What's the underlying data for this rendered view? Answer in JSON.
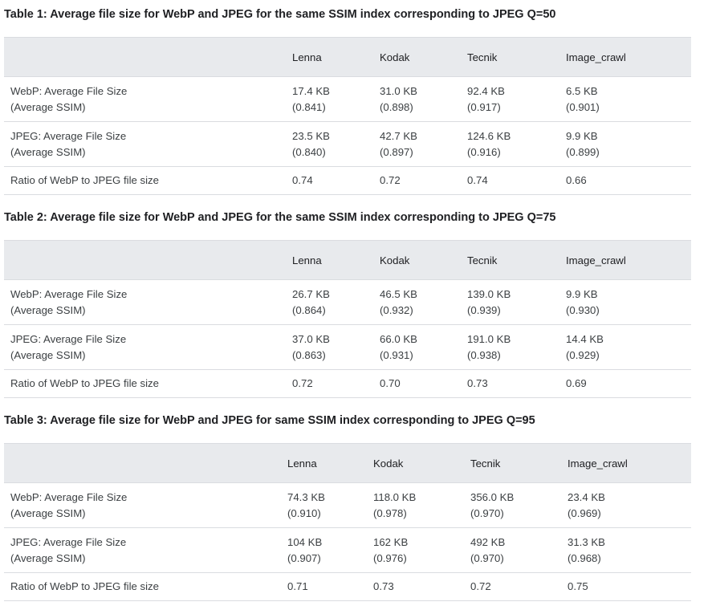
{
  "tables": [
    {
      "caption": "Table 1: Average file size for WebP and JPEG for the same SSIM index corresponding to JPEG Q=50",
      "columns": [
        "",
        "Lenna",
        "Kodak",
        "Tecnik",
        "Image_crawl"
      ],
      "rows": [
        {
          "label": [
            "WebP: Average File Size",
            "(Average SSIM)"
          ],
          "cells": [
            [
              "17.4 KB",
              "(0.841)"
            ],
            [
              "31.0 KB",
              "(0.898)"
            ],
            [
              "92.4 KB",
              "(0.917)"
            ],
            [
              "6.5 KB",
              "(0.901)"
            ]
          ]
        },
        {
          "label": [
            "JPEG: Average File Size",
            "(Average SSIM)"
          ],
          "cells": [
            [
              "23.5 KB",
              "(0.840)"
            ],
            [
              "42.7 KB",
              "(0.897)"
            ],
            [
              "124.6 KB",
              "(0.916)"
            ],
            [
              "9.9 KB",
              "(0.899)"
            ]
          ]
        },
        {
          "label": [
            "Ratio of WebP to JPEG file size"
          ],
          "cells": [
            [
              "0.74"
            ],
            [
              "0.72"
            ],
            [
              "0.74"
            ],
            [
              "0.66"
            ]
          ]
        }
      ]
    },
    {
      "caption": "Table 2: Average file size for WebP and JPEG for the same SSIM index corresponding to JPEG Q=75",
      "columns": [
        "",
        "Lenna",
        "Kodak",
        "Tecnik",
        "Image_crawl"
      ],
      "rows": [
        {
          "label": [
            "WebP: Average File Size",
            "(Average SSIM)"
          ],
          "cells": [
            [
              "26.7 KB",
              "(0.864)"
            ],
            [
              "46.5 KB",
              "(0.932)"
            ],
            [
              "139.0 KB",
              "(0.939)"
            ],
            [
              "9.9 KB",
              "(0.930)"
            ]
          ]
        },
        {
          "label": [
            "JPEG: Average File Size",
            "(Average SSIM)"
          ],
          "cells": [
            [
              "37.0 KB",
              "(0.863)"
            ],
            [
              "66.0 KB",
              "(0.931)"
            ],
            [
              "191.0 KB",
              "(0.938)"
            ],
            [
              "14.4 KB",
              "(0.929)"
            ]
          ]
        },
        {
          "label": [
            "Ratio of WebP to JPEG file size"
          ],
          "cells": [
            [
              "0.72"
            ],
            [
              "0.70"
            ],
            [
              "0.73"
            ],
            [
              "0.69"
            ]
          ]
        }
      ]
    },
    {
      "caption": "Table 3: Average file size for WebP and JPEG for same SSIM index corresponding to JPEG Q=95",
      "columns": [
        "",
        "Lenna",
        "Kodak",
        "Tecnik",
        "Image_crawl"
      ],
      "rows": [
        {
          "label": [
            "WebP: Average File Size",
            "(Average SSIM)"
          ],
          "cells": [
            [
              "74.3 KB",
              "(0.910)"
            ],
            [
              "118.0 KB",
              "(0.978)"
            ],
            [
              "356.0 KB",
              "(0.970)"
            ],
            [
              "23.4 KB",
              "(0.969)"
            ]
          ]
        },
        {
          "label": [
            "JPEG: Average File Size",
            "(Average SSIM)"
          ],
          "cells": [
            [
              "104 KB",
              "(0.907)"
            ],
            [
              "162 KB",
              "(0.976)"
            ],
            [
              "492 KB",
              "(0.970)"
            ],
            [
              "31.3 KB",
              "(0.968)"
            ]
          ]
        },
        {
          "label": [
            "Ratio of WebP to JPEG file size"
          ],
          "cells": [
            [
              "0.71"
            ],
            [
              "0.73"
            ],
            [
              "0.72"
            ],
            [
              "0.75"
            ]
          ]
        }
      ]
    }
  ]
}
